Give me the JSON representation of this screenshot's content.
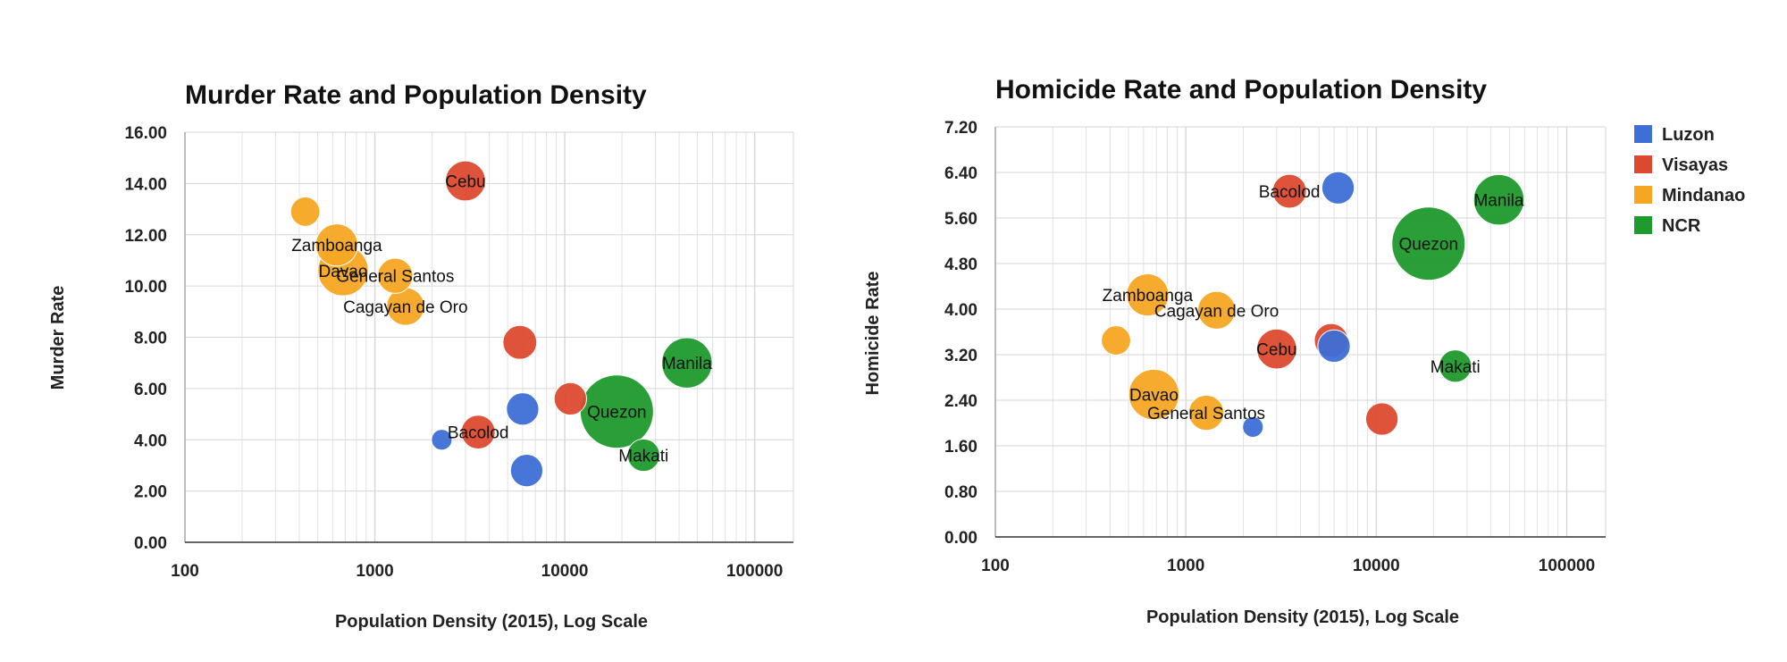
{
  "colors": {
    "Luzon": "#3d6fd6",
    "Visayas": "#dc4a2e",
    "Mindanao": "#f6a623",
    "NCR": "#1f9a2d",
    "grid": "#d6d6d6",
    "axis": "#333333"
  },
  "legend": {
    "items": [
      {
        "label": "Luzon",
        "color": "#3d6fd6"
      },
      {
        "label": "Visayas",
        "color": "#dc4a2e"
      },
      {
        "label": "Mindanao",
        "color": "#f6a623"
      },
      {
        "label": "NCR",
        "color": "#1f9a2d"
      }
    ]
  },
  "chart_data": [
    {
      "type": "scatter",
      "title": "Murder Rate and Population Density",
      "xlabel": "Population Density (2015), Log Scale",
      "ylabel": "Murder Rate",
      "xscale": "log",
      "xlim": [
        100,
        160000
      ],
      "ylim": [
        0,
        16
      ],
      "xticks": [
        "100",
        "1000",
        "10000",
        "100000"
      ],
      "yticks": [
        "0.00",
        "2.00",
        "4.00",
        "6.00",
        "8.00",
        "10.00",
        "12.00",
        "14.00",
        "16.00"
      ],
      "grid": true,
      "legend": "none",
      "points": [
        {
          "label": "Cebu",
          "x": 3000,
          "y": 14.1,
          "region": "Visayas",
          "size": 2.8
        },
        {
          "label": "",
          "x": 430,
          "y": 12.9,
          "region": "Mindanao",
          "size": 1.2
        },
        {
          "label": "Zamboanga",
          "x": 630,
          "y": 11.6,
          "region": "Mindanao",
          "size": 3.2
        },
        {
          "label": "Davao",
          "x": 680,
          "y": 10.6,
          "region": "Mindanao",
          "size": 5.0
        },
        {
          "label": "General Santos",
          "x": 1280,
          "y": 10.4,
          "region": "Mindanao",
          "size": 2.0
        },
        {
          "label": "Cagayan de Oro",
          "x": 1450,
          "y": 9.2,
          "region": "Mindanao",
          "size": 2.4
        },
        {
          "label": "",
          "x": 5800,
          "y": 7.8,
          "region": "Visayas",
          "size": 1.8
        },
        {
          "label": "Manila",
          "x": 44000,
          "y": 7.0,
          "region": "NCR",
          "size": 5.0
        },
        {
          "label": "",
          "x": 10700,
          "y": 5.6,
          "region": "Visayas",
          "size": 1.6
        },
        {
          "label": "",
          "x": 6000,
          "y": 5.2,
          "region": "Luzon",
          "size": 1.6
        },
        {
          "label": "Quezon",
          "x": 18800,
          "y": 5.1,
          "region": "NCR",
          "size": 12.0
        },
        {
          "label": "Bacolod",
          "x": 3500,
          "y": 4.3,
          "region": "Visayas",
          "size": 1.8
        },
        {
          "label": "",
          "x": 2250,
          "y": 4.0,
          "region": "Luzon",
          "size": 0.4
        },
        {
          "label": "Makati",
          "x": 26000,
          "y": 3.4,
          "region": "NCR",
          "size": 1.6
        },
        {
          "label": "",
          "x": 6300,
          "y": 2.8,
          "region": "Luzon",
          "size": 1.6
        }
      ]
    },
    {
      "type": "scatter",
      "title": "Homicide Rate and Population Density",
      "xlabel": "Population Density (2015), Log Scale",
      "ylabel": "Homicide Rate",
      "xscale": "log",
      "xlim": [
        100,
        160000
      ],
      "ylim": [
        0,
        7.2
      ],
      "xticks": [
        "100",
        "1000",
        "10000",
        "100000"
      ],
      "yticks": [
        "0.00",
        "0.80",
        "1.60",
        "2.40",
        "3.20",
        "4.00",
        "4.80",
        "5.60",
        "6.40",
        "7.20"
      ],
      "grid": true,
      "legend": "right",
      "points": [
        {
          "label": "Bacolod",
          "x": 3500,
          "y": 6.07,
          "region": "Visayas",
          "size": 1.8
        },
        {
          "label": "",
          "x": 6300,
          "y": 6.13,
          "region": "Luzon",
          "size": 1.6
        },
        {
          "label": "Manila",
          "x": 44000,
          "y": 5.92,
          "region": "NCR",
          "size": 5.0
        },
        {
          "label": "Quezon",
          "x": 18800,
          "y": 5.15,
          "region": "NCR",
          "size": 12.0
        },
        {
          "label": "Zamboanga",
          "x": 630,
          "y": 4.25,
          "region": "Mindanao",
          "size": 3.2
        },
        {
          "label": "Cagayan de Oro",
          "x": 1450,
          "y": 3.98,
          "region": "Mindanao",
          "size": 2.4
        },
        {
          "label": "",
          "x": 430,
          "y": 3.45,
          "region": "Mindanao",
          "size": 1.2
        },
        {
          "label": "",
          "x": 5800,
          "y": 3.45,
          "region": "Visayas",
          "size": 1.8
        },
        {
          "label": "",
          "x": 6000,
          "y": 3.35,
          "region": "Luzon",
          "size": 1.6
        },
        {
          "label": "Cebu",
          "x": 3000,
          "y": 3.3,
          "region": "Visayas",
          "size": 2.8
        },
        {
          "label": "Makati",
          "x": 26000,
          "y": 3.0,
          "region": "NCR",
          "size": 1.6
        },
        {
          "label": "Davao",
          "x": 680,
          "y": 2.5,
          "region": "Mindanao",
          "size": 5.0
        },
        {
          "label": "General Santos",
          "x": 1280,
          "y": 2.18,
          "region": "Mindanao",
          "size": 2.0
        },
        {
          "label": "",
          "x": 2250,
          "y": 1.93,
          "region": "Luzon",
          "size": 0.4
        },
        {
          "label": "",
          "x": 10700,
          "y": 2.07,
          "region": "Visayas",
          "size": 1.6
        }
      ]
    }
  ]
}
